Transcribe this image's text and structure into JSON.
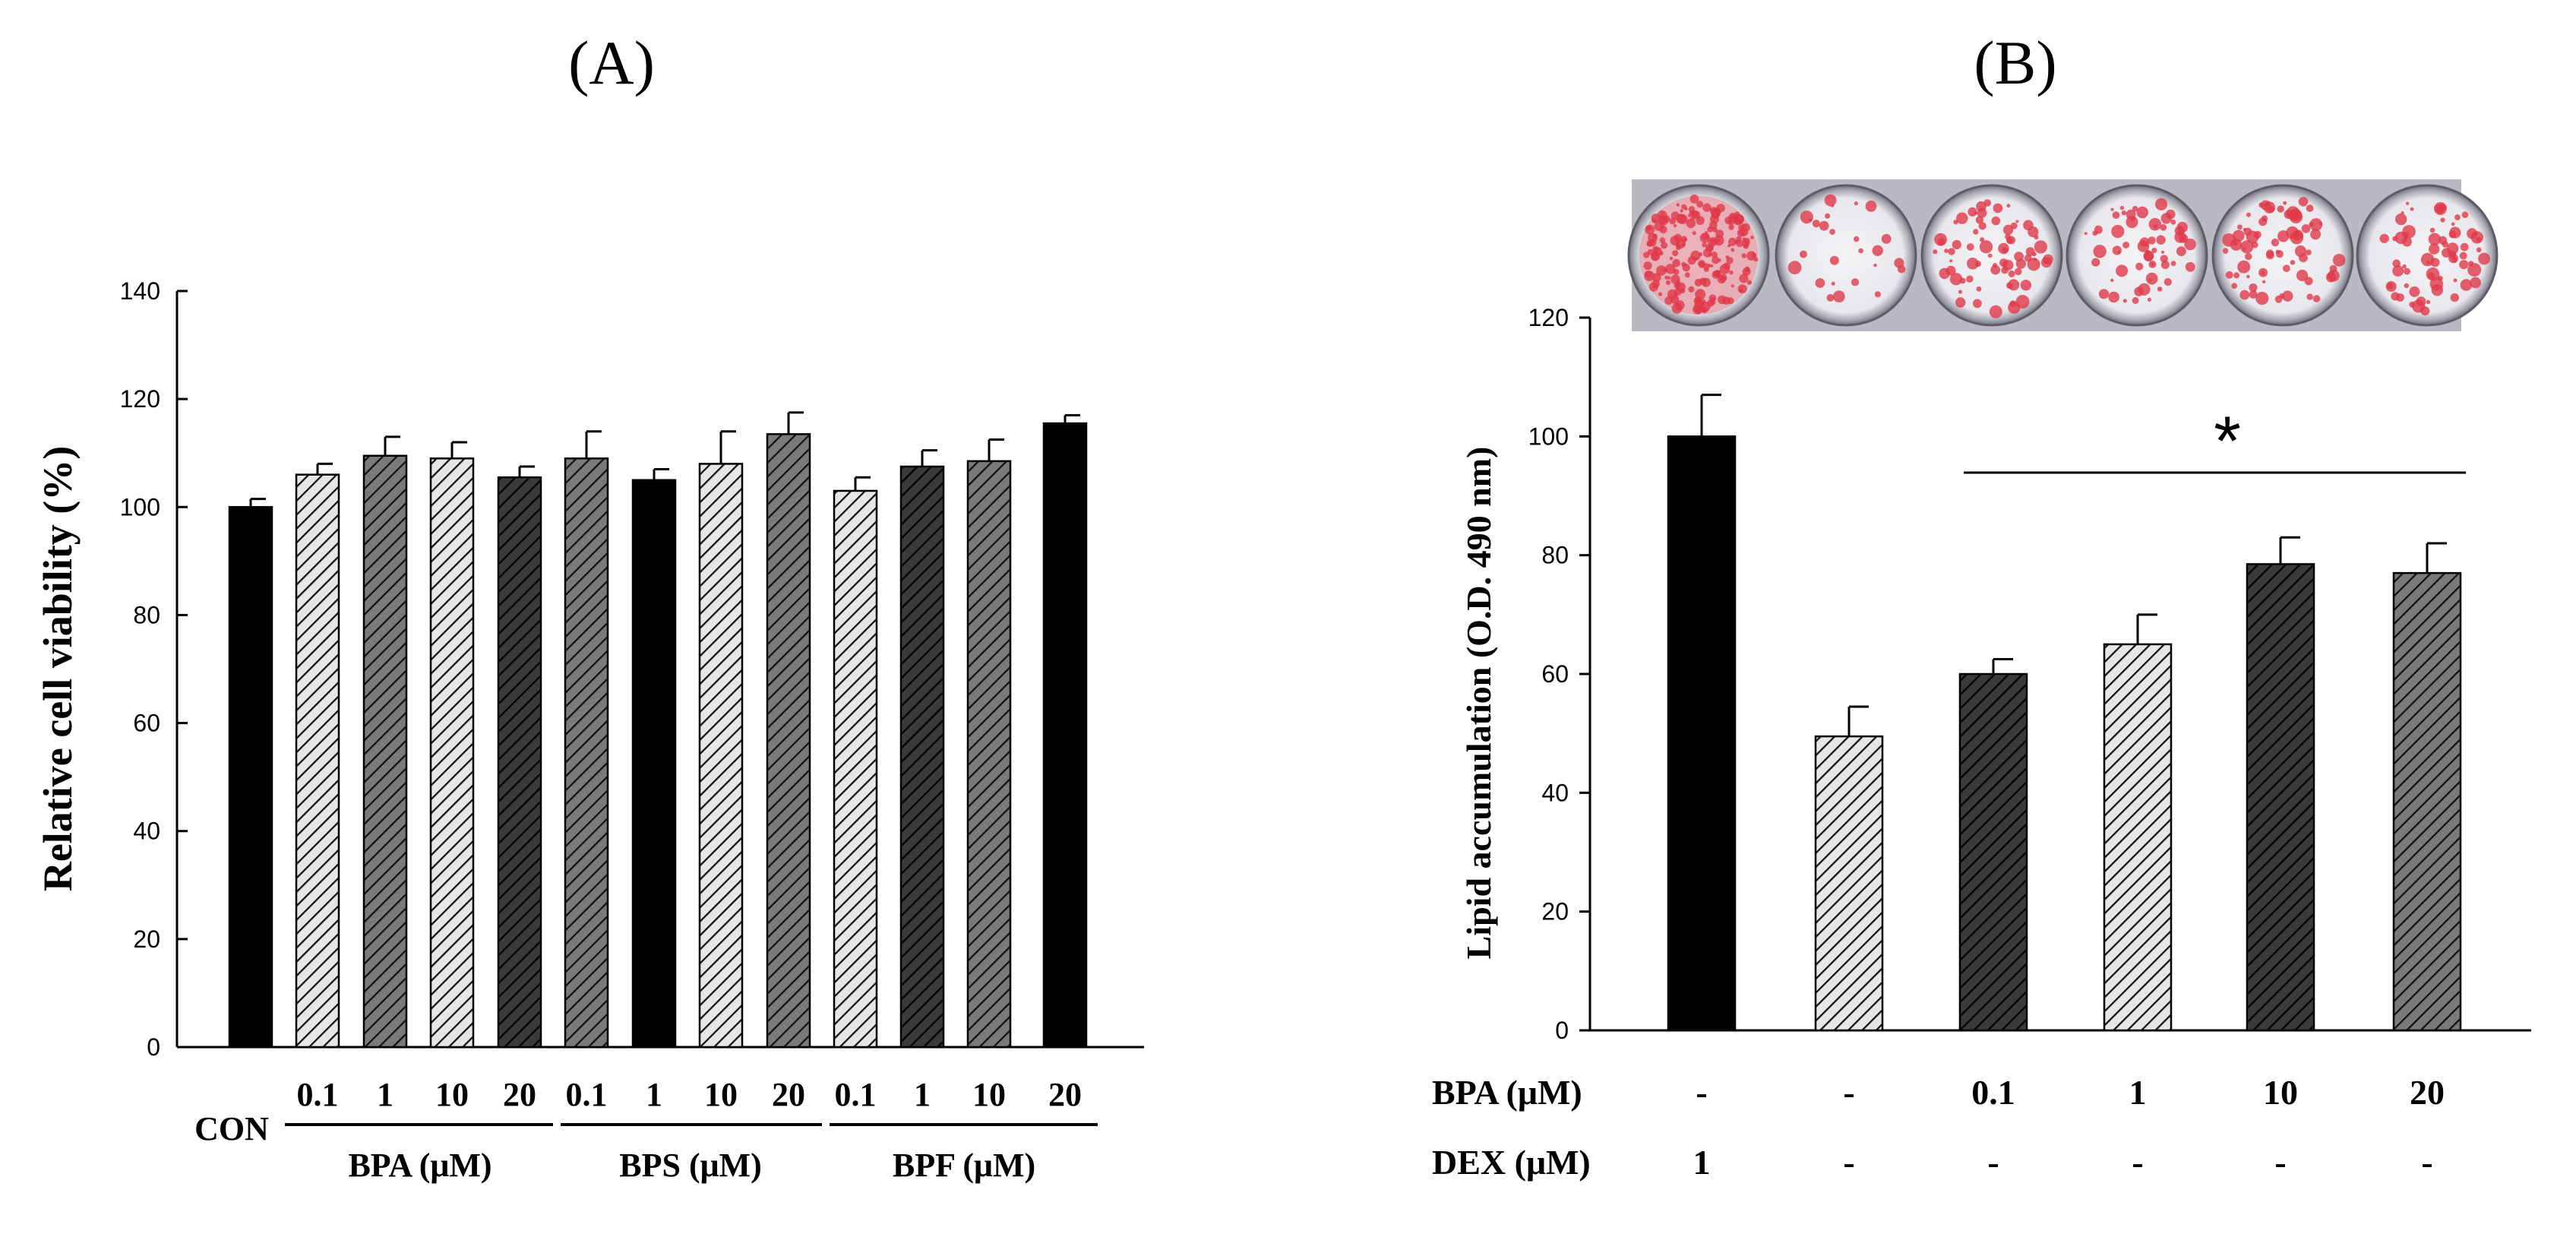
{
  "chart_data": [
    {
      "panel_label": "(A)",
      "type": "bar",
      "ylabel": "Relative cell viability (%)",
      "ylim": [
        0,
        140
      ],
      "yticks": [
        0,
        20,
        40,
        60,
        80,
        100,
        120,
        140
      ],
      "categories": [
        "CON",
        "0.1",
        "1",
        "10",
        "20",
        "0.1",
        "1",
        "10",
        "20",
        "0.1",
        "1",
        "10",
        "20"
      ],
      "values": [
        100,
        106,
        109.5,
        109,
        105.5,
        109,
        105,
        108,
        113.5,
        103,
        107.5,
        108.5,
        115.5
      ],
      "errors": [
        1.5,
        2,
        3.5,
        3,
        2,
        5,
        2,
        6,
        4,
        2.5,
        3,
        4,
        1.5
      ],
      "fills": [
        "solid-black",
        "hatch-light",
        "hatch-medium",
        "hatch-light",
        "hatch-dark",
        "hatch-medium",
        "solid-black",
        "hatch-light",
        "hatch-medium",
        "hatch-light",
        "hatch-dark",
        "hatch-medium",
        "solid-black"
      ],
      "groups": [
        {
          "label": "BPA (μM)"
        },
        {
          "label": "BPS (μM)"
        },
        {
          "label": "BPF (μM)"
        }
      ]
    },
    {
      "panel_label": "(B)",
      "type": "bar",
      "ylabel": "Lipid accumulation (O.D. 490 nm)",
      "ylim": [
        0,
        120
      ],
      "yticks": [
        0,
        20,
        40,
        60,
        80,
        100,
        120
      ],
      "values": [
        100,
        49.5,
        60,
        65,
        78.5,
        77
      ],
      "errors": [
        7,
        5,
        2.5,
        5,
        4.5,
        5
      ],
      "fills": [
        "solid-black",
        "hatch-light",
        "hatch-dark",
        "hatch-light",
        "hatch-dark",
        "hatch-medium"
      ],
      "significance": {
        "marker": "*"
      },
      "treatment_rows": [
        {
          "label": "BPA (μM)",
          "values": [
            "-",
            "-",
            "0.1",
            "1",
            "10",
            "20"
          ]
        },
        {
          "label": "DEX (μM)",
          "values": [
            "1",
            "-",
            "-",
            "-",
            "-",
            "-"
          ]
        }
      ],
      "wells": [
        {
          "stain": "dense red"
        },
        {
          "stain": "sparse"
        },
        {
          "stain": "moderate"
        },
        {
          "stain": "moderate"
        },
        {
          "stain": "moderate"
        },
        {
          "stain": "moderate"
        }
      ]
    }
  ],
  "colors": {
    "axis": "#000000",
    "solid_bar": "#000000",
    "hatch_light_bg": "#e6e6e6",
    "hatch_medium_bg": "#7a7a7a",
    "hatch_dark_bg": "#3a3a3a",
    "stain": "#e0394a"
  }
}
